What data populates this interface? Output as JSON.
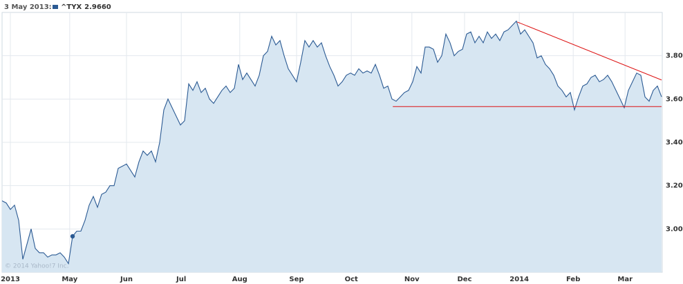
{
  "chart_data": {
    "type": "area",
    "series": [
      {
        "name": "^TYX",
        "color": "#2b5a93",
        "fill": "#d7e6f2",
        "values": [
          3.13,
          3.12,
          3.09,
          3.11,
          3.04,
          2.86,
          2.93,
          3.0,
          2.91,
          2.89,
          2.89,
          2.87,
          2.88,
          2.88,
          2.89,
          2.87,
          2.84,
          2.966,
          2.99,
          2.99,
          3.04,
          3.11,
          3.15,
          3.1,
          3.16,
          3.17,
          3.2,
          3.2,
          3.28,
          3.29,
          3.3,
          3.27,
          3.24,
          3.31,
          3.36,
          3.34,
          3.36,
          3.31,
          3.4,
          3.55,
          3.6,
          3.56,
          3.52,
          3.48,
          3.5,
          3.67,
          3.64,
          3.68,
          3.63,
          3.65,
          3.6,
          3.58,
          3.61,
          3.64,
          3.66,
          3.63,
          3.65,
          3.76,
          3.69,
          3.72,
          3.69,
          3.66,
          3.71,
          3.8,
          3.82,
          3.89,
          3.85,
          3.87,
          3.8,
          3.74,
          3.71,
          3.68,
          3.77,
          3.87,
          3.84,
          3.87,
          3.84,
          3.86,
          3.8,
          3.75,
          3.71,
          3.66,
          3.68,
          3.71,
          3.72,
          3.71,
          3.74,
          3.72,
          3.73,
          3.72,
          3.76,
          3.71,
          3.65,
          3.66,
          3.6,
          3.59,
          3.61,
          3.63,
          3.64,
          3.68,
          3.75,
          3.72,
          3.84,
          3.84,
          3.83,
          3.77,
          3.8,
          3.9,
          3.86,
          3.8,
          3.82,
          3.83,
          3.9,
          3.91,
          3.86,
          3.89,
          3.86,
          3.91,
          3.88,
          3.9,
          3.87,
          3.91,
          3.92,
          3.94,
          3.96,
          3.9,
          3.92,
          3.89,
          3.86,
          3.79,
          3.8,
          3.76,
          3.74,
          3.71,
          3.66,
          3.64,
          3.61,
          3.63,
          3.55,
          3.61,
          3.66,
          3.67,
          3.7,
          3.71,
          3.68,
          3.69,
          3.71,
          3.68,
          3.64,
          3.6,
          3.56,
          3.64,
          3.68,
          3.72,
          3.71,
          3.61,
          3.59,
          3.64,
          3.66,
          3.61
        ]
      }
    ],
    "highlight": {
      "date": "3 May 2013:",
      "index": 17,
      "value_label": "2.9660"
    },
    "trendlines": [
      {
        "x": [
          94.2,
          159
        ],
        "values": [
          3.565,
          3.565
        ],
        "color": "#dd1111"
      },
      {
        "x": [
          124.2,
          159
        ],
        "values": [
          3.956,
          3.688
        ],
        "color": "#dd1111"
      }
    ],
    "xlim": [
      0,
      159
    ],
    "xticks": [
      {
        "value": 2,
        "label": "2013"
      },
      {
        "value": 16.3,
        "label": "May"
      },
      {
        "value": 30,
        "label": "Jun"
      },
      {
        "value": 43.2,
        "label": "Jul"
      },
      {
        "value": 57.3,
        "label": "Aug"
      },
      {
        "value": 71,
        "label": "Sep"
      },
      {
        "value": 84.2,
        "label": "Oct"
      },
      {
        "value": 98.8,
        "label": "Nov"
      },
      {
        "value": 111.5,
        "label": "Dec"
      },
      {
        "value": 124.7,
        "label": "2014"
      },
      {
        "value": 137.7,
        "label": "Feb"
      },
      {
        "value": 150.2,
        "label": "Mar"
      }
    ],
    "ylim": [
      2.8,
      4.0
    ],
    "yticks": [
      {
        "value": 3.0,
        "label": "3.00"
      },
      {
        "value": 3.2,
        "label": "3.20"
      },
      {
        "value": 3.4,
        "label": "3.40"
      },
      {
        "value": 3.6,
        "label": "3.60"
      },
      {
        "value": 3.8,
        "label": "3.80"
      }
    ],
    "grid": true,
    "credit": "© 2014 Yahoo!7 Inc."
  }
}
